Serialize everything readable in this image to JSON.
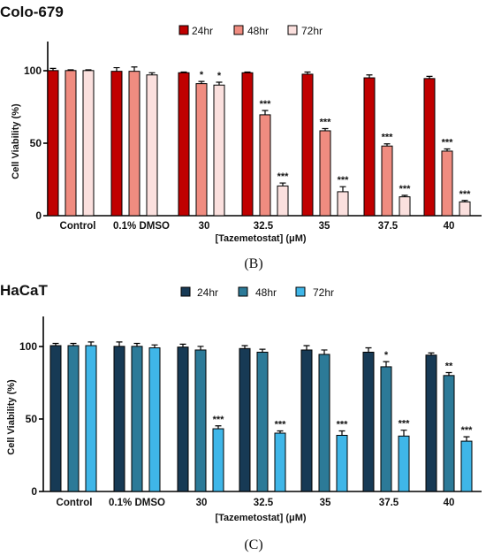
{
  "chart_data": [
    {
      "type": "bar",
      "title": "Colo-679",
      "xlabel": "[Tazemetostat] (μM)",
      "ylabel": "Cell Viability (%)",
      "ylim": [
        0,
        120
      ],
      "yticks": [
        "0",
        "50",
        "100"
      ],
      "categories": [
        "Control",
        "0.1% DMSO",
        "30",
        "32.5",
        "35",
        "37.5",
        "40"
      ],
      "legend_position": "top",
      "caption": "(B)",
      "series": [
        {
          "name": "24hr",
          "color": "#c00000",
          "values": [
            100,
            99.5,
            98.5,
            98.5,
            97.5,
            95,
            94.5
          ],
          "errors": [
            1.5,
            2.5,
            0.5,
            0.5,
            1.5,
            2,
            1.5
          ],
          "sig": [
            "",
            "",
            "",
            "",
            "",
            "",
            ""
          ]
        },
        {
          "name": "48hr",
          "color": "#f08c80",
          "values": [
            100,
            99.5,
            91,
            69.5,
            58.5,
            48,
            44.5
          ],
          "errors": [
            0.5,
            3,
            1.5,
            3,
            1.5,
            1.5,
            1.5
          ],
          "sig": [
            "",
            "",
            "*",
            "***",
            "***",
            "***",
            "***"
          ]
        },
        {
          "name": "72hr",
          "color": "#fbe0de",
          "values": [
            100,
            97,
            90,
            20.5,
            16.5,
            13,
            9.5
          ],
          "errors": [
            0.5,
            1.5,
            2,
            2,
            3.5,
            1,
            1
          ],
          "sig": [
            "",
            "",
            "*",
            "***",
            "***",
            "***",
            "***"
          ]
        }
      ]
    },
    {
      "type": "bar",
      "title": "HaCaT",
      "xlabel": "[Tazemetostat] (μM)",
      "ylabel": "Cell Viability (%)",
      "ylim": [
        0,
        120
      ],
      "yticks": [
        "0",
        "50",
        "100"
      ],
      "categories": [
        "Control",
        "0.1% DMSO",
        "30",
        "32.5",
        "35",
        "37.5",
        "40"
      ],
      "legend_position": "top",
      "caption": "(C)",
      "series": [
        {
          "name": "24hr",
          "color": "#173a55",
          "values": [
            100,
            99.5,
            99,
            98,
            97,
            95.5,
            93.5
          ],
          "errors": [
            1.5,
            3,
            2,
            2,
            3,
            3,
            1.5
          ],
          "sig": [
            "",
            "",
            "",
            "",
            "",
            "",
            ""
          ]
        },
        {
          "name": "48hr",
          "color": "#2c7a98",
          "values": [
            100,
            99.5,
            97,
            95.5,
            94,
            85.5,
            79.5
          ],
          "errors": [
            1.5,
            2,
            2.5,
            2,
            3,
            3.5,
            2
          ],
          "sig": [
            "",
            "",
            "",
            "",
            "",
            "*",
            "**"
          ]
        },
        {
          "name": "72hr",
          "color": "#3fb6e8",
          "values": [
            100,
            98.5,
            43,
            40,
            38.5,
            38,
            34.5
          ],
          "errors": [
            2.5,
            2,
            2,
            1.5,
            3,
            4,
            3
          ],
          "sig": [
            "",
            "",
            "***",
            "***",
            "***",
            "***",
            "***"
          ]
        }
      ]
    }
  ]
}
